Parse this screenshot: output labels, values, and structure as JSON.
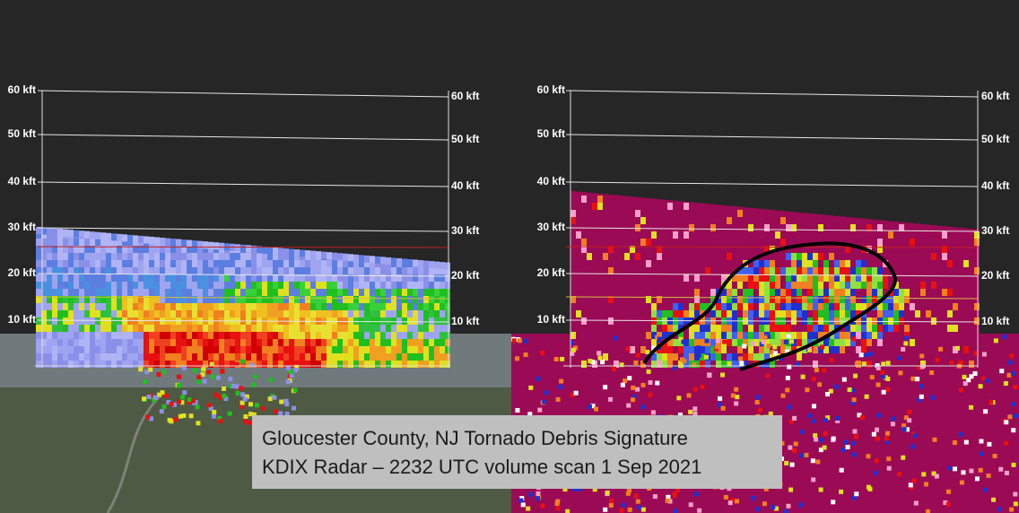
{
  "height_labels": [
    "60 kft",
    "50 kft",
    "40 kft",
    "30 kft",
    "20 kft",
    "10 kft"
  ],
  "caption": {
    "line1": "Gloucester County, NJ Tornado Debris Signature",
    "line2": "KDIX Radar – 2232 UTC volume scan 1 Sep 2021"
  }
}
